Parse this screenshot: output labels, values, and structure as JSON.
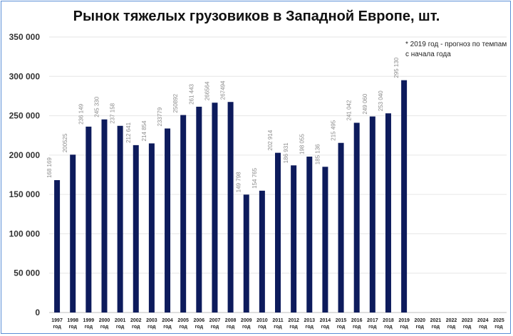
{
  "chart_data": {
    "type": "bar",
    "title": "Рынок тяжелых грузовиков в Западной Европе, шт.",
    "note_lines": [
      "* 2019 год - прогноз по темпам",
      "с начала года"
    ],
    "xlabel": "",
    "ylabel": "",
    "ylim": [
      0,
      350000
    ],
    "yticks": [
      0,
      50000,
      100000,
      150000,
      200000,
      250000,
      300000,
      350000
    ],
    "ytick_labels": [
      "0",
      "50 000",
      "100 000",
      "150 000",
      "200 000",
      "250 000",
      "300 000",
      "350 000"
    ],
    "grid": true,
    "bar_color": "#0d1b5c",
    "categories": [
      [
        "1997",
        "год"
      ],
      [
        "1998",
        "год"
      ],
      [
        "1999",
        "год"
      ],
      [
        "2000",
        "год"
      ],
      [
        "2001",
        "год"
      ],
      [
        "2002",
        "год"
      ],
      [
        "2003",
        "год"
      ],
      [
        "2004",
        "год"
      ],
      [
        "2005",
        "год"
      ],
      [
        "2006",
        "год"
      ],
      [
        "2007",
        "год"
      ],
      [
        "2008",
        "год"
      ],
      [
        "2009",
        "год"
      ],
      [
        "2010",
        "год"
      ],
      [
        "2011",
        "год"
      ],
      [
        "2012",
        "год"
      ],
      [
        "2013",
        "год"
      ],
      [
        "2014",
        "год"
      ],
      [
        "2015",
        "год"
      ],
      [
        "2016",
        "год"
      ],
      [
        "2017",
        "год"
      ],
      [
        "2018",
        "год"
      ],
      [
        "2019",
        "год"
      ],
      [
        "2020",
        "год"
      ],
      [
        "2021",
        "год"
      ],
      [
        "2022",
        "год"
      ],
      [
        "2023",
        "год"
      ],
      [
        "2024",
        "год"
      ],
      [
        "2025",
        "год"
      ]
    ],
    "values": [
      168169,
      200525,
      236149,
      245330,
      237158,
      212641,
      214854,
      233779,
      250892,
      261443,
      266564,
      267494,
      149798,
      154765,
      202914,
      186931,
      198055,
      185136,
      215495,
      241042,
      249060,
      253040,
      295130,
      null,
      null,
      null,
      null,
      null,
      null
    ],
    "data_labels": [
      "168 169",
      "200525",
      "236 149",
      "245 330",
      "237 158",
      "212 641",
      "214 854",
      "233779",
      "250892",
      "261 443",
      "266564",
      "267494",
      "149 798",
      "154 765",
      "202 914",
      "186 931",
      "198 055",
      "185 136",
      "215 495",
      "241 042",
      "249 060",
      "253 040",
      "295 130",
      "",
      "",
      "",
      "",
      "",
      ""
    ]
  }
}
